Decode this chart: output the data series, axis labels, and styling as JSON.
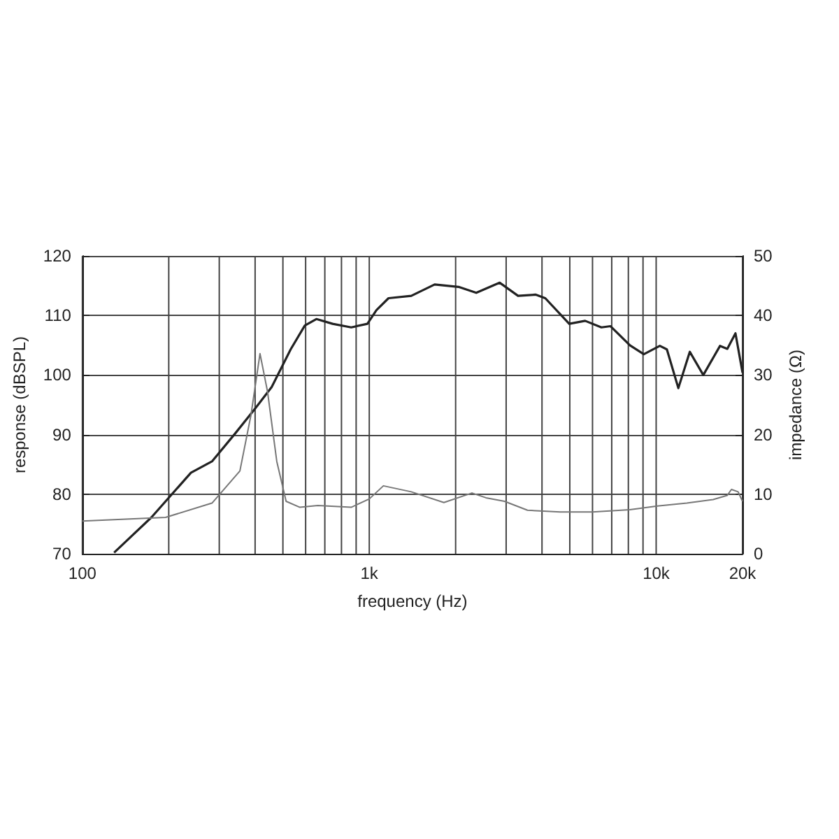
{
  "chart_data": {
    "type": "line",
    "xlabel": "frequency (Hz)",
    "ylabel": "response (dBSPL)",
    "y2label": "impedance (Ω)",
    "log": "x",
    "grid": true,
    "marker": "none",
    "line_style": "solid",
    "xlim": [
      100,
      20000
    ],
    "xticks": [
      {
        "value": 100,
        "label": "100"
      },
      {
        "value": 200,
        "label": null
      },
      {
        "value": 300,
        "label": null
      },
      {
        "value": 400,
        "label": null
      },
      {
        "value": 500,
        "label": null
      },
      {
        "value": 600,
        "label": null
      },
      {
        "value": 700,
        "label": null
      },
      {
        "value": 800,
        "label": null
      },
      {
        "value": 900,
        "label": null
      },
      {
        "value": 1000,
        "label": "1k"
      },
      {
        "value": 2000,
        "label": null
      },
      {
        "value": 3000,
        "label": null
      },
      {
        "value": 4000,
        "label": null
      },
      {
        "value": 5000,
        "label": null
      },
      {
        "value": 6000,
        "label": null
      },
      {
        "value": 7000,
        "label": null
      },
      {
        "value": 8000,
        "label": null
      },
      {
        "value": 9000,
        "label": null
      },
      {
        "value": 10000,
        "label": "10k"
      },
      {
        "value": 20000,
        "label": "20k"
      }
    ],
    "ylim": [
      70,
      120
    ],
    "yticks": [
      70,
      80,
      90,
      100,
      110,
      120
    ],
    "y2lim": [
      0,
      50
    ],
    "y2ticks": [
      0,
      10,
      20,
      30,
      40,
      50
    ],
    "series": [
      {
        "color": "#222222",
        "x": [
          129,
          174,
          239,
          283,
          341,
          402,
          457,
          532,
          596,
          654,
          745,
          865,
          985,
          1059,
          1167,
          1401,
          1690,
          2047,
          2360,
          2849,
          3301,
          3808,
          4106,
          4977,
          5656,
          6444,
          6934,
          8102,
          9057,
          10300,
          10900,
          11950,
          13100,
          14600,
          16700,
          17700,
          18900,
          20000
        ],
        "values": [
          70.2,
          76.1,
          83.6,
          85.5,
          90.2,
          94.5,
          98,
          104.3,
          108.3,
          109.4,
          108.6,
          108,
          108.6,
          110.9,
          112.9,
          113.3,
          115.2,
          114.8,
          113.8,
          115.5,
          113.3,
          113.5,
          112.9,
          108.6,
          109.1,
          108,
          108.2,
          105,
          103.5,
          104.9,
          104.3,
          97.8,
          103.9,
          100,
          104.9,
          104.4,
          107,
          100.4
        ]
      },
      {
        "color": "#777777",
        "axis": "y2",
        "x": [
          100,
          195,
          283,
          354,
          387,
          416,
          442,
          476,
          513,
          573,
          662,
          865,
          1000,
          1120,
          1400,
          1820,
          2280,
          2550,
          2960,
          3560,
          4630,
          6000,
          8100,
          10100,
          12800,
          15800,
          17700,
          18300,
          19300,
          20000
        ],
        "values": [
          5.5,
          6.1,
          8.5,
          13.9,
          23.3,
          33.6,
          27.2,
          15.5,
          8.8,
          7.8,
          8.1,
          7.8,
          9.2,
          11.4,
          10.4,
          8.6,
          10.2,
          9.4,
          8.8,
          7.3,
          7.0,
          7.0,
          7.4,
          8.0,
          8.5,
          9.1,
          9.8,
          10.8,
          10.4,
          8.8
        ]
      }
    ]
  }
}
